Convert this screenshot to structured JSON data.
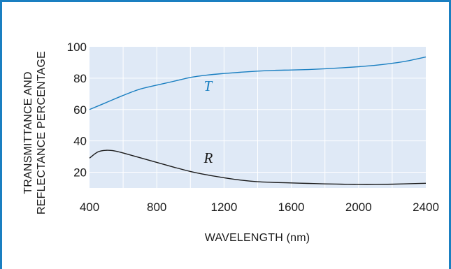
{
  "colors": {
    "frame_border": "#1a7fc1",
    "plot_background": "#dfe9f6",
    "grid": "#ffffff",
    "transmittance_line": "#1a7fc1",
    "reflectance_line": "#1a1a1a"
  },
  "chart_data": {
    "type": "line",
    "title": "",
    "xlabel": "WAVELENGTH (nm)",
    "ylabel_lines": [
      "TRANSMITTANCE AND",
      "REFLECTANCE PERCENTAGE"
    ],
    "xlim": [
      400,
      2400
    ],
    "ylim": [
      10,
      100
    ],
    "xticks": [
      400,
      800,
      1200,
      1600,
      2000,
      2400
    ],
    "yticks": [
      20,
      40,
      60,
      80,
      100
    ],
    "x_grid_step": 200,
    "grid": true,
    "series": [
      {
        "name": "T",
        "color_key": "transmittance_line",
        "label_at": [
          1080,
          72
        ],
        "points": [
          [
            400,
            60
          ],
          [
            500,
            64.5
          ],
          [
            600,
            69
          ],
          [
            700,
            73
          ],
          [
            800,
            75.6
          ],
          [
            900,
            78
          ],
          [
            1000,
            80.5
          ],
          [
            1100,
            82
          ],
          [
            1200,
            83
          ],
          [
            1300,
            83.8
          ],
          [
            1400,
            84.5
          ],
          [
            1500,
            85
          ],
          [
            1600,
            85.2
          ],
          [
            1700,
            85.5
          ],
          [
            1800,
            86
          ],
          [
            1900,
            86.6
          ],
          [
            2000,
            87.3
          ],
          [
            2100,
            88.2
          ],
          [
            2200,
            89.5
          ],
          [
            2300,
            91.2
          ],
          [
            2400,
            93.5
          ]
        ]
      },
      {
        "name": "R",
        "color_key": "reflectance_line",
        "label_at": [
          1080,
          26
        ],
        "points": [
          [
            400,
            29
          ],
          [
            450,
            33
          ],
          [
            500,
            34
          ],
          [
            550,
            33.6
          ],
          [
            600,
            32.3
          ],
          [
            700,
            29.3
          ],
          [
            800,
            26.3
          ],
          [
            900,
            23.3
          ],
          [
            1000,
            20.5
          ],
          [
            1100,
            18.3
          ],
          [
            1200,
            16.5
          ],
          [
            1300,
            15
          ],
          [
            1400,
            14
          ],
          [
            1500,
            13.5
          ],
          [
            1600,
            13.2
          ],
          [
            1700,
            12.9
          ],
          [
            1800,
            12.6
          ],
          [
            1900,
            12.4
          ],
          [
            2000,
            12.2
          ],
          [
            2100,
            12.2
          ],
          [
            2200,
            12.4
          ],
          [
            2300,
            12.7
          ],
          [
            2400,
            13
          ]
        ]
      }
    ]
  }
}
